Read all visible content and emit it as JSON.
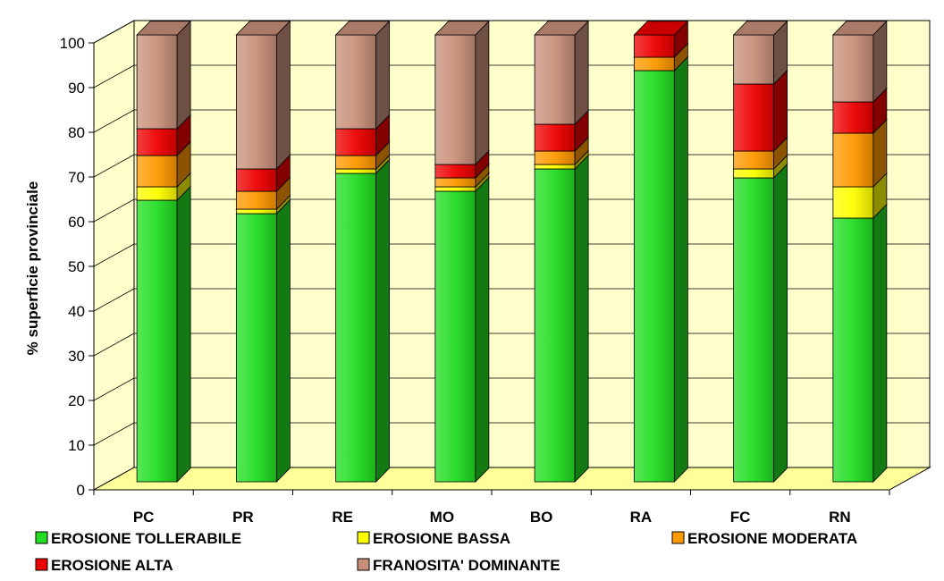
{
  "chart_data": {
    "type": "bar",
    "stacked": true,
    "three_d": true,
    "categories": [
      "PC",
      "PR",
      "RE",
      "MO",
      "BO",
      "RA",
      "FC",
      "RN"
    ],
    "ylabel": "% superficie provinciale",
    "ylim": [
      0,
      100
    ],
    "yticks": [
      0,
      10,
      20,
      30,
      40,
      50,
      60,
      70,
      80,
      90,
      100
    ],
    "grid": true,
    "legend_position": "bottom",
    "series": [
      {
        "name": "EROSIONE TOLLERABILE",
        "color": "#22dd22",
        "values": [
          63,
          60,
          69,
          65,
          70,
          92,
          68,
          59
        ]
      },
      {
        "name": "EROSIONE BASSA",
        "color": "#ffff00",
        "values": [
          3,
          1,
          1,
          1,
          1,
          0,
          2,
          7
        ]
      },
      {
        "name": "EROSIONE MODERATA",
        "color": "#ff9900",
        "values": [
          7,
          4,
          3,
          2,
          3,
          3,
          4,
          12
        ]
      },
      {
        "name": "EROSIONE ALTA",
        "color": "#ee0000",
        "values": [
          6,
          5,
          6,
          3,
          6,
          5,
          15,
          7
        ]
      },
      {
        "name": "FRANOSITA' DOMINANTE",
        "color": "#c8907a",
        "values": [
          21,
          30,
          21,
          29,
          20,
          0,
          11,
          15
        ]
      }
    ]
  }
}
